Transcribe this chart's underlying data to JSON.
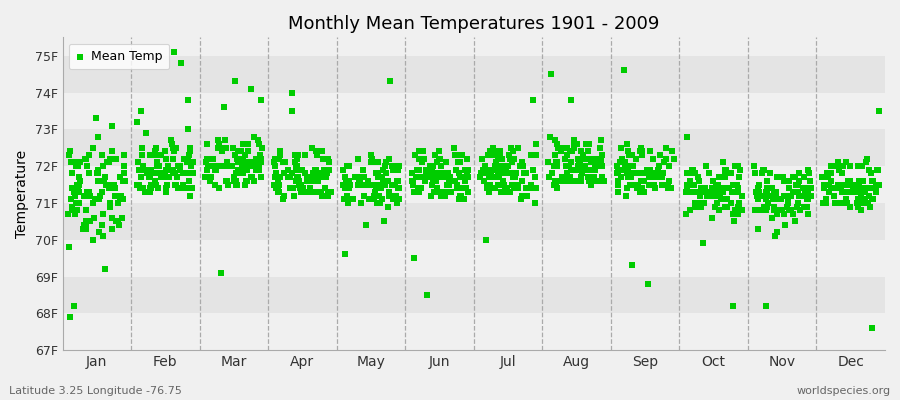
{
  "title": "Monthly Mean Temperatures 1901 - 2009",
  "ylabel": "Temperature",
  "footer_left": "Latitude 3.25 Longitude -76.75",
  "footer_right": "worldspecies.org",
  "legend_label": "Mean Temp",
  "marker_color": "#00cc00",
  "marker": "s",
  "marker_size": 4,
  "background_color": "#f0f0f0",
  "plot_bg_color": "#e8e8e8",
  "stripe_colors": [
    "#f0f0f0",
    "#e0e0e0"
  ],
  "ylim": [
    67,
    75.5
  ],
  "yticks": [
    67,
    68,
    69,
    70,
    71,
    72,
    73,
    74,
    75
  ],
  "ytick_labels": [
    "67F",
    "68F",
    "69F",
    "70F",
    "71F",
    "72F",
    "73F",
    "74F",
    "75F"
  ],
  "months": [
    "Jan",
    "Feb",
    "Mar",
    "Apr",
    "May",
    "Jun",
    "Jul",
    "Aug",
    "Sep",
    "Oct",
    "Nov",
    "Dec"
  ],
  "data": {
    "Jan": [
      71.2,
      71.1,
      70.9,
      71.3,
      70.8,
      71.5,
      72.1,
      71.0,
      70.7,
      71.4,
      72.3,
      71.8,
      70.5,
      71.6,
      72.0,
      71.7,
      70.3,
      71.9,
      72.5,
      71.2,
      70.1,
      71.0,
      72.2,
      71.3,
      70.6,
      71.5,
      72.1,
      71.8,
      70.4,
      71.1,
      72.0,
      71.4,
      70.8,
      71.6,
      72.3,
      71.2,
      70.5,
      71.3,
      72.1,
      71.0,
      70.7,
      71.8,
      72.4,
      71.1,
      70.3,
      71.5,
      72.2,
      71.6,
      70.2,
      71.0,
      72.0,
      71.4,
      70.6,
      71.7,
      72.3,
      71.2,
      70.8,
      71.5,
      72.1,
      71.3,
      70.5,
      71.2,
      72.2,
      71.8,
      70.4,
      71.1,
      72.0,
      71.5,
      70.9,
      71.6,
      72.4,
      71.3,
      70.7,
      71.4,
      72.1,
      71.0,
      70.6,
      71.8,
      72.3,
      71.2,
      70.5,
      71.6,
      72.0,
      71.4,
      70.8,
      71.3,
      72.2,
      71.7,
      70.4,
      71.1,
      72.1,
      71.5,
      70.3,
      71.2,
      73.1,
      73.3,
      72.8,
      70.0,
      69.8,
      68.2,
      67.9,
      69.2,
      70.4,
      71.1
    ],
    "Feb": [
      71.6,
      71.5,
      71.8,
      72.0,
      71.4,
      71.7,
      72.3,
      71.9,
      71.2,
      71.8,
      72.5,
      72.1,
      71.5,
      71.9,
      72.2,
      72.0,
      71.4,
      71.8,
      72.4,
      72.0,
      71.3,
      71.7,
      72.2,
      71.8,
      71.5,
      71.9,
      72.3,
      71.7,
      71.4,
      71.8,
      72.0,
      71.6,
      71.3,
      71.7,
      72.1,
      71.8,
      71.4,
      71.9,
      72.4,
      71.8,
      71.5,
      71.9,
      72.6,
      72.2,
      71.4,
      71.8,
      72.3,
      71.7,
      71.3,
      71.8,
      72.1,
      71.7,
      71.5,
      71.9,
      72.3,
      72.0,
      71.4,
      71.8,
      72.2,
      71.7,
      71.4,
      71.8,
      72.3,
      71.9,
      71.5,
      71.9,
      72.5,
      72.1,
      71.4,
      71.8,
      72.4,
      71.8,
      71.5,
      72.0,
      72.5,
      71.9,
      71.5,
      71.9,
      72.4,
      71.8,
      71.4,
      71.8,
      72.2,
      71.7,
      71.5,
      71.9,
      72.3,
      71.8,
      71.4,
      71.9,
      72.5,
      72.0,
      71.4,
      71.8,
      73.8,
      74.8,
      75.1,
      73.5,
      72.9,
      73.0,
      72.7,
      73.2,
      72.5
    ],
    "Mar": [
      71.8,
      71.7,
      72.0,
      72.2,
      71.5,
      71.9,
      72.5,
      72.1,
      71.4,
      72.0,
      72.6,
      72.2,
      71.6,
      72.0,
      72.4,
      72.2,
      71.6,
      72.0,
      72.6,
      72.2,
      71.5,
      71.9,
      72.4,
      72.0,
      71.7,
      72.1,
      72.5,
      71.9,
      71.6,
      72.0,
      72.2,
      71.8,
      71.5,
      71.9,
      72.3,
      72.0,
      71.6,
      72.1,
      72.6,
      72.0,
      71.7,
      72.1,
      72.8,
      72.4,
      71.6,
      72.0,
      72.5,
      71.9,
      71.5,
      72.0,
      72.3,
      71.9,
      71.7,
      72.1,
      72.5,
      72.2,
      71.6,
      72.0,
      72.4,
      71.9,
      71.6,
      72.0,
      72.5,
      72.1,
      71.7,
      72.1,
      72.7,
      72.3,
      71.6,
      72.0,
      72.6,
      72.0,
      71.7,
      72.2,
      72.7,
      72.1,
      71.7,
      72.1,
      72.6,
      72.0,
      71.6,
      72.0,
      72.4,
      71.9,
      71.7,
      72.1,
      72.5,
      72.0,
      71.6,
      72.1,
      72.7,
      72.2,
      71.6,
      72.0,
      71.5,
      71.8,
      72.0,
      71.9,
      73.8,
      74.3,
      73.6,
      74.1,
      69.1
    ],
    "Apr": [
      71.5,
      71.4,
      71.7,
      71.9,
      71.2,
      71.6,
      72.2,
      71.8,
      71.1,
      71.7,
      72.3,
      71.9,
      71.3,
      71.7,
      72.1,
      71.9,
      71.3,
      71.7,
      72.3,
      71.9,
      71.2,
      71.6,
      72.1,
      71.7,
      71.4,
      71.8,
      72.2,
      71.6,
      71.3,
      71.7,
      71.9,
      71.5,
      71.2,
      71.6,
      72.0,
      71.7,
      71.3,
      71.8,
      72.3,
      71.7,
      71.4,
      71.8,
      72.5,
      72.1,
      71.3,
      71.7,
      72.2,
      71.6,
      71.2,
      71.7,
      72.0,
      71.6,
      71.4,
      71.8,
      72.2,
      71.9,
      71.3,
      71.7,
      72.1,
      71.6,
      71.3,
      71.7,
      72.2,
      71.8,
      71.4,
      71.8,
      72.4,
      72.0,
      71.3,
      71.7,
      72.3,
      71.7,
      71.4,
      71.9,
      72.4,
      71.8,
      71.4,
      71.8,
      72.3,
      71.7,
      71.3,
      71.7,
      72.1,
      71.6,
      71.4,
      71.8,
      72.2,
      71.7,
      71.3,
      71.8,
      72.4,
      71.9,
      71.3,
      71.7,
      74.0,
      71.4,
      71.6,
      71.5,
      71.8,
      71.5,
      73.5,
      71.2,
      71.3
    ],
    "May": [
      71.3,
      71.2,
      71.5,
      71.7,
      71.0,
      71.4,
      72.0,
      71.6,
      70.9,
      71.5,
      72.1,
      71.7,
      71.1,
      71.5,
      71.9,
      71.7,
      71.1,
      71.5,
      72.1,
      71.7,
      71.0,
      71.4,
      71.9,
      71.5,
      71.2,
      71.6,
      72.0,
      71.4,
      71.1,
      71.5,
      71.7,
      71.3,
      71.0,
      71.4,
      71.8,
      71.5,
      71.1,
      71.6,
      72.1,
      71.5,
      71.2,
      71.6,
      72.3,
      71.9,
      71.1,
      71.5,
      72.0,
      71.4,
      71.0,
      71.5,
      71.8,
      71.4,
      71.2,
      71.6,
      72.0,
      71.7,
      71.1,
      71.5,
      71.9,
      71.4,
      71.1,
      71.5,
      72.0,
      71.6,
      71.2,
      71.6,
      72.2,
      71.8,
      71.1,
      71.5,
      72.1,
      71.5,
      71.2,
      71.7,
      72.2,
      71.6,
      71.2,
      71.6,
      72.1,
      71.5,
      71.1,
      71.5,
      71.9,
      71.4,
      71.2,
      71.6,
      72.0,
      71.5,
      71.1,
      71.6,
      72.2,
      71.7,
      71.1,
      71.5,
      74.3,
      72.0,
      70.5,
      71.0,
      70.4,
      71.2,
      71.5,
      69.6,
      71.1
    ],
    "Jun": [
      71.5,
      71.4,
      71.7,
      71.9,
      71.2,
      71.6,
      72.2,
      71.8,
      71.1,
      71.7,
      72.3,
      71.9,
      71.3,
      71.7,
      72.1,
      71.9,
      71.3,
      71.7,
      72.3,
      71.9,
      71.2,
      71.6,
      72.1,
      71.7,
      71.4,
      71.8,
      72.2,
      71.6,
      71.3,
      71.7,
      71.9,
      71.5,
      71.2,
      71.6,
      72.0,
      71.7,
      71.3,
      71.8,
      72.3,
      71.7,
      71.4,
      71.8,
      72.5,
      72.1,
      71.3,
      71.7,
      72.2,
      71.6,
      71.2,
      71.7,
      72.0,
      71.6,
      71.4,
      71.8,
      72.2,
      71.9,
      71.3,
      71.7,
      72.1,
      71.6,
      71.3,
      71.7,
      72.2,
      71.8,
      71.4,
      71.8,
      72.4,
      72.0,
      71.3,
      71.7,
      72.3,
      71.7,
      71.4,
      71.9,
      72.4,
      71.8,
      71.4,
      71.8,
      72.3,
      71.7,
      71.3,
      71.7,
      72.1,
      71.6,
      71.4,
      71.8,
      72.2,
      71.7,
      71.3,
      71.8,
      72.4,
      71.9,
      71.3,
      71.7,
      71.5,
      71.4,
      71.5,
      71.3,
      71.2,
      71.1,
      69.5,
      68.5,
      71.5
    ],
    "Jul": [
      71.6,
      71.5,
      71.8,
      72.0,
      71.3,
      71.7,
      72.3,
      71.9,
      71.2,
      71.8,
      72.4,
      72.0,
      71.4,
      71.8,
      72.2,
      72.0,
      71.4,
      71.8,
      72.4,
      72.0,
      71.3,
      71.7,
      72.2,
      71.8,
      71.5,
      71.9,
      72.3,
      71.7,
      71.4,
      71.8,
      72.0,
      71.6,
      71.3,
      71.7,
      72.1,
      71.8,
      71.4,
      71.9,
      72.4,
      71.8,
      71.5,
      71.9,
      72.6,
      72.2,
      71.4,
      71.8,
      72.3,
      71.7,
      71.3,
      71.8,
      72.1,
      71.7,
      71.5,
      71.9,
      72.3,
      72.0,
      71.4,
      71.8,
      72.2,
      71.7,
      71.4,
      71.8,
      72.3,
      71.9,
      71.5,
      71.9,
      72.5,
      72.1,
      71.4,
      71.8,
      72.4,
      71.8,
      71.5,
      72.0,
      72.5,
      71.9,
      71.5,
      71.9,
      72.4,
      71.8,
      71.4,
      71.8,
      72.2,
      71.7,
      71.5,
      71.9,
      72.3,
      71.8,
      71.4,
      71.9,
      72.5,
      72.0,
      71.4,
      71.8,
      71.6,
      71.5,
      71.4,
      71.2,
      71.0,
      70.0,
      71.1,
      73.8,
      71.4
    ],
    "Aug": [
      71.8,
      71.7,
      72.0,
      72.2,
      71.5,
      71.9,
      72.5,
      72.1,
      71.4,
      72.0,
      72.6,
      72.2,
      71.6,
      72.0,
      72.4,
      72.2,
      71.6,
      72.0,
      72.6,
      72.2,
      71.5,
      71.9,
      72.4,
      72.0,
      71.7,
      72.1,
      72.5,
      71.9,
      71.6,
      72.0,
      72.2,
      71.8,
      71.5,
      71.9,
      72.3,
      72.0,
      71.6,
      72.1,
      72.6,
      72.0,
      71.7,
      72.1,
      72.8,
      72.4,
      71.6,
      72.0,
      72.5,
      71.9,
      71.5,
      72.0,
      72.3,
      71.9,
      71.7,
      72.1,
      72.5,
      72.2,
      71.6,
      72.0,
      72.4,
      71.9,
      71.6,
      72.0,
      72.5,
      72.1,
      71.7,
      72.1,
      72.7,
      72.3,
      71.6,
      72.0,
      72.6,
      72.0,
      71.7,
      72.2,
      72.7,
      72.1,
      71.7,
      72.1,
      72.6,
      72.0,
      71.6,
      72.0,
      72.4,
      71.9,
      71.7,
      72.1,
      72.5,
      72.0,
      71.6,
      72.1,
      72.7,
      72.2,
      71.6,
      72.0,
      71.8,
      73.8,
      74.5,
      72.3,
      71.9,
      72.1,
      71.7,
      71.9,
      71.6
    ],
    "Sep": [
      71.6,
      71.5,
      71.8,
      72.0,
      71.3,
      71.7,
      72.3,
      71.9,
      71.2,
      71.8,
      72.4,
      72.0,
      71.4,
      71.8,
      72.2,
      72.0,
      71.4,
      71.8,
      72.4,
      72.0,
      71.3,
      71.7,
      72.2,
      71.8,
      71.5,
      71.9,
      72.3,
      71.7,
      71.4,
      71.8,
      72.0,
      71.6,
      71.3,
      71.7,
      72.1,
      71.8,
      71.4,
      71.9,
      72.4,
      71.8,
      71.5,
      71.9,
      72.6,
      72.2,
      71.4,
      71.8,
      72.3,
      71.7,
      71.3,
      71.8,
      72.1,
      71.7,
      71.5,
      71.9,
      72.3,
      72.0,
      71.4,
      71.8,
      72.2,
      71.7,
      71.4,
      71.8,
      72.3,
      71.9,
      71.5,
      71.9,
      72.5,
      72.1,
      71.4,
      71.8,
      72.4,
      71.8,
      71.5,
      72.0,
      72.5,
      71.9,
      71.5,
      71.9,
      72.4,
      71.8,
      71.4,
      71.8,
      72.2,
      71.7,
      71.5,
      71.9,
      72.3,
      71.8,
      71.4,
      71.9,
      72.5,
      72.0,
      71.4,
      71.8,
      74.6,
      71.5,
      71.6,
      71.4,
      71.5,
      71.6,
      71.3,
      69.3,
      68.8
    ],
    "Oct": [
      71.1,
      71.0,
      71.3,
      71.5,
      70.8,
      71.2,
      71.8,
      71.4,
      70.7,
      71.3,
      71.9,
      71.5,
      70.9,
      71.3,
      71.7,
      71.5,
      70.9,
      71.3,
      71.9,
      71.5,
      70.8,
      71.2,
      71.7,
      71.3,
      71.0,
      71.4,
      71.8,
      71.2,
      70.9,
      71.3,
      71.5,
      71.1,
      70.8,
      71.2,
      71.6,
      71.3,
      70.9,
      71.4,
      71.9,
      71.3,
      71.0,
      71.4,
      72.1,
      71.7,
      70.9,
      71.3,
      71.8,
      71.2,
      70.8,
      71.3,
      71.6,
      71.2,
      71.0,
      71.4,
      71.8,
      71.5,
      70.9,
      71.3,
      71.7,
      71.2,
      70.9,
      71.3,
      71.8,
      71.4,
      71.0,
      71.4,
      72.0,
      71.6,
      70.9,
      71.3,
      71.9,
      71.3,
      71.0,
      71.5,
      72.0,
      71.4,
      71.0,
      71.4,
      71.9,
      71.3,
      70.9,
      71.3,
      71.7,
      71.2,
      71.0,
      71.4,
      71.8,
      71.3,
      70.9,
      71.4,
      72.0,
      71.5,
      70.9,
      71.3,
      70.7,
      70.8,
      70.9,
      70.6,
      70.5,
      70.7,
      69.9,
      68.2,
      72.8
    ],
    "Nov": [
      71.0,
      70.9,
      71.2,
      71.4,
      70.7,
      71.1,
      71.7,
      71.3,
      70.6,
      71.2,
      71.8,
      71.4,
      70.8,
      71.2,
      71.6,
      71.4,
      70.8,
      71.2,
      71.8,
      71.4,
      70.7,
      71.1,
      71.6,
      71.2,
      70.9,
      71.3,
      71.7,
      71.1,
      70.8,
      71.2,
      71.4,
      71.0,
      70.7,
      71.1,
      71.5,
      71.2,
      70.8,
      71.3,
      71.8,
      71.2,
      70.9,
      71.3,
      72.0,
      71.6,
      70.8,
      71.2,
      71.7,
      71.1,
      70.7,
      71.2,
      71.5,
      71.1,
      70.9,
      71.3,
      71.7,
      71.4,
      70.8,
      71.2,
      71.6,
      71.1,
      70.8,
      71.2,
      71.7,
      71.3,
      70.9,
      71.3,
      71.9,
      71.5,
      70.8,
      71.2,
      71.8,
      71.2,
      70.9,
      71.4,
      71.9,
      71.3,
      70.9,
      71.3,
      71.8,
      71.2,
      70.8,
      71.2,
      71.6,
      71.1,
      70.9,
      71.3,
      71.7,
      71.2,
      70.8,
      71.3,
      71.9,
      71.4,
      70.8,
      71.2,
      70.4,
      70.3,
      70.2,
      70.1,
      71.0,
      70.5,
      70.8,
      71.1,
      68.2
    ],
    "Dec": [
      71.2,
      71.1,
      71.4,
      71.6,
      70.9,
      71.3,
      71.9,
      71.5,
      70.8,
      71.4,
      72.0,
      71.6,
      71.0,
      71.4,
      71.8,
      71.6,
      71.0,
      71.4,
      72.0,
      71.6,
      70.9,
      71.3,
      71.8,
      71.4,
      71.1,
      71.5,
      71.9,
      71.3,
      71.0,
      71.4,
      71.6,
      71.2,
      70.9,
      71.3,
      71.7,
      71.4,
      71.0,
      71.5,
      72.0,
      71.4,
      71.1,
      71.5,
      72.2,
      71.8,
      71.0,
      71.4,
      71.9,
      71.3,
      70.9,
      71.4,
      71.7,
      71.3,
      71.1,
      71.5,
      71.9,
      71.6,
      71.0,
      71.4,
      71.8,
      71.3,
      71.0,
      71.4,
      71.9,
      71.5,
      71.1,
      71.5,
      72.1,
      71.7,
      71.0,
      71.4,
      72.0,
      71.4,
      71.1,
      71.6,
      72.1,
      71.5,
      71.1,
      71.5,
      72.0,
      71.4,
      71.0,
      71.4,
      71.8,
      71.3,
      71.1,
      71.5,
      71.9,
      71.4,
      71.0,
      71.5,
      72.1,
      71.6,
      71.0,
      71.4,
      73.5,
      71.3,
      71.1,
      71.0,
      71.2,
      71.4,
      71.5,
      72.0,
      67.6
    ]
  }
}
